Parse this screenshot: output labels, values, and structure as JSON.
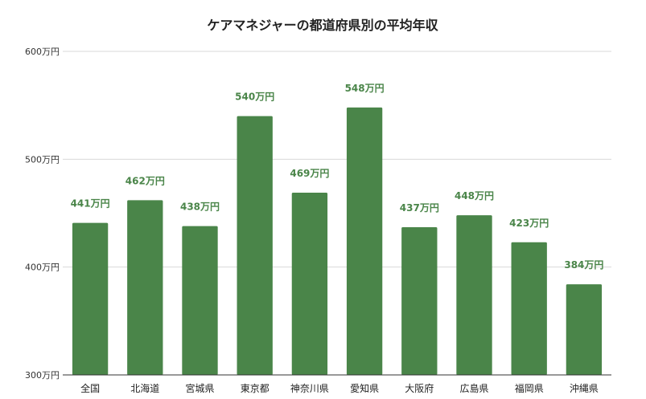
{
  "chart_data": {
    "type": "bar",
    "title": "ケアマネジャーの都道府県別の平均年収",
    "xlabel": "",
    "ylabel": "",
    "categories": [
      "全国",
      "北海道",
      "宮城県",
      "東京都",
      "神奈川県",
      "愛知県",
      "大阪府",
      "広島県",
      "福岡県",
      "沖縄県"
    ],
    "values": [
      441,
      462,
      438,
      540,
      469,
      548,
      437,
      448,
      423,
      384
    ],
    "data_labels": [
      "441万円",
      "462万円",
      "438万円",
      "540万円",
      "469万円",
      "548万円",
      "437万円",
      "448万円",
      "423万円",
      "384万円"
    ],
    "ylim": [
      300,
      600
    ],
    "yticks": [
      300,
      400,
      500,
      600
    ],
    "ytick_labels": [
      "300万円",
      "400万円",
      "500万円",
      "600万円"
    ],
    "grid": true,
    "legend": "none",
    "bar_color": "#4a8549",
    "label_color": "#4a8549"
  }
}
